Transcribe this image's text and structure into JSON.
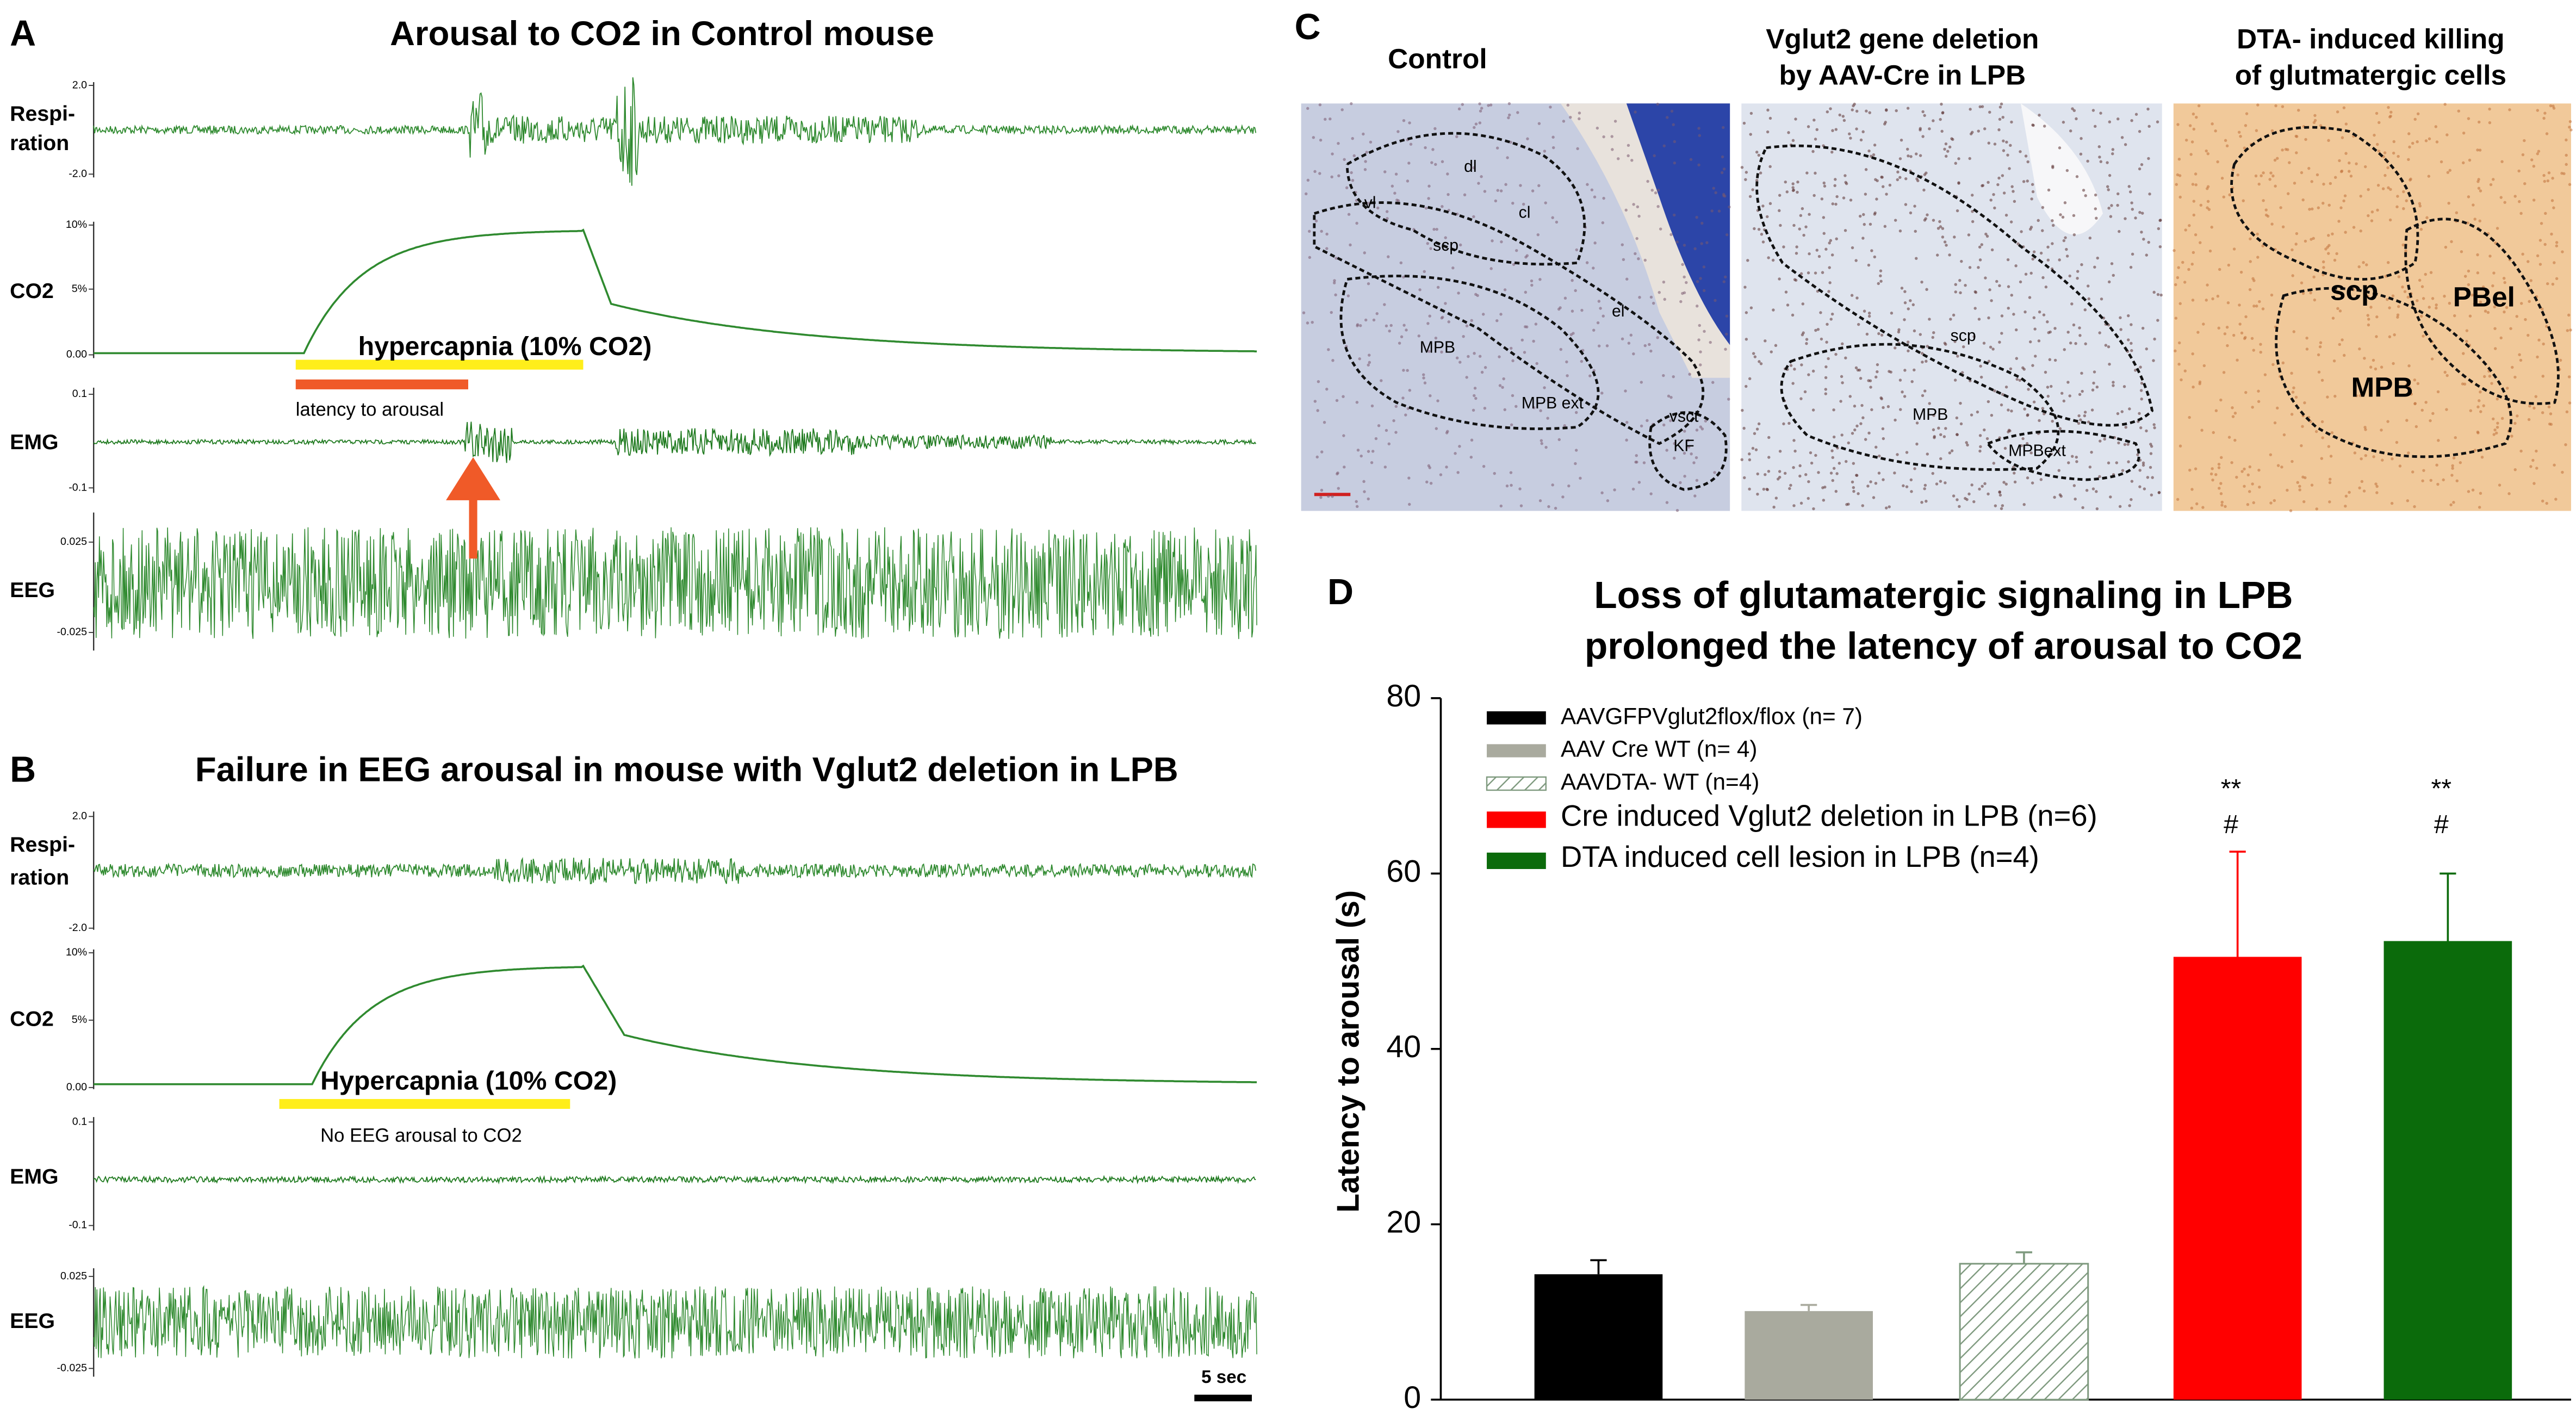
{
  "panel_a": {
    "label": "A",
    "title": "Arousal to CO2 in Control mouse",
    "channels": [
      {
        "name": [
          "Respi-",
          "ration"
        ],
        "ticks": [
          "2.0",
          "-2.0"
        ]
      },
      {
        "name": [
          "CO2"
        ],
        "ticks": [
          "10%",
          "5%",
          "0.00"
        ]
      },
      {
        "name": [
          "EMG"
        ],
        "ticks": [
          "0.1",
          "-0.1"
        ]
      },
      {
        "name": [
          "EEG"
        ],
        "ticks": [
          "0.025",
          "-0.025"
        ]
      }
    ],
    "stimulus": "hypercapnia (10% CO2)",
    "note": "latency to arousal"
  },
  "panel_b": {
    "label": "B",
    "title": "Failure in EEG arousal in mouse with Vglut2 deletion in LPB",
    "channels": [
      {
        "name": [
          "Respi-",
          "ration"
        ],
        "ticks": [
          "2.0",
          "-2.0"
        ]
      },
      {
        "name": [
          "CO2"
        ],
        "ticks": [
          "10%",
          "5%",
          "0.00"
        ]
      },
      {
        "name": [
          "EMG"
        ],
        "ticks": [
          "0.1",
          "-0.1"
        ]
      },
      {
        "name": [
          "EEG"
        ],
        "ticks": [
          "0.025",
          "-0.025"
        ]
      }
    ],
    "stimulus": "Hypercapnia (10% CO2)",
    "note": "No EEG arousal to CO2",
    "scale_bar": "5 sec"
  },
  "panel_c": {
    "label": "C",
    "images": [
      {
        "title": [
          "Control"
        ],
        "regions": [
          "dl",
          "vl",
          "cl",
          "scp",
          "el",
          "MPB",
          "MPB ext",
          "vsct",
          "KF"
        ]
      },
      {
        "title": [
          "Vglut2 gene deletion",
          "by AAV-Cre in LPB"
        ],
        "regions": [
          "scp",
          "MPB",
          "MPBext"
        ]
      },
      {
        "title": [
          "DTA- induced killing",
          "of glutmatergic cells"
        ],
        "regions": [
          "scp",
          "PBel",
          "MPB"
        ]
      }
    ]
  },
  "chart_data": {
    "label": "D",
    "type": "bar",
    "title": [
      "Loss of glutamatergic signaling in LPB",
      "prolonged the latency of arousal to CO2"
    ],
    "ylabel": "Latency to arousal (s)",
    "ylim": [
      0,
      80
    ],
    "yticks": [
      0,
      20,
      40,
      60,
      80
    ],
    "series": [
      {
        "name": "AAVGFPVglut2flox/flox (n= 7)",
        "color": "#000000",
        "values": [
          14.3
        ],
        "errors": [
          1.6
        ]
      },
      {
        "name": "AAV Cre WT (n= 4)",
        "color": "#a9aa9e",
        "values": [
          10.1
        ],
        "errors": [
          0.7
        ]
      },
      {
        "name": "AAVDTA- WT (n=4)",
        "color": "#7f9a7f",
        "hatch": true,
        "values": [
          15.5
        ],
        "errors": [
          1.3
        ]
      },
      {
        "name": "Cre induced Vglut2 deletion in LPB (n=6)",
        "color": "#ff0000",
        "values": [
          50.5
        ],
        "errors": [
          12.0
        ],
        "annotations": [
          "**",
          "#"
        ]
      },
      {
        "name": "DTA induced cell lesion in LPB (n=4)",
        "color": "#0b6b0b",
        "values": [
          52.3
        ],
        "errors": [
          7.7
        ],
        "annotations": [
          "**",
          "#"
        ]
      }
    ]
  }
}
